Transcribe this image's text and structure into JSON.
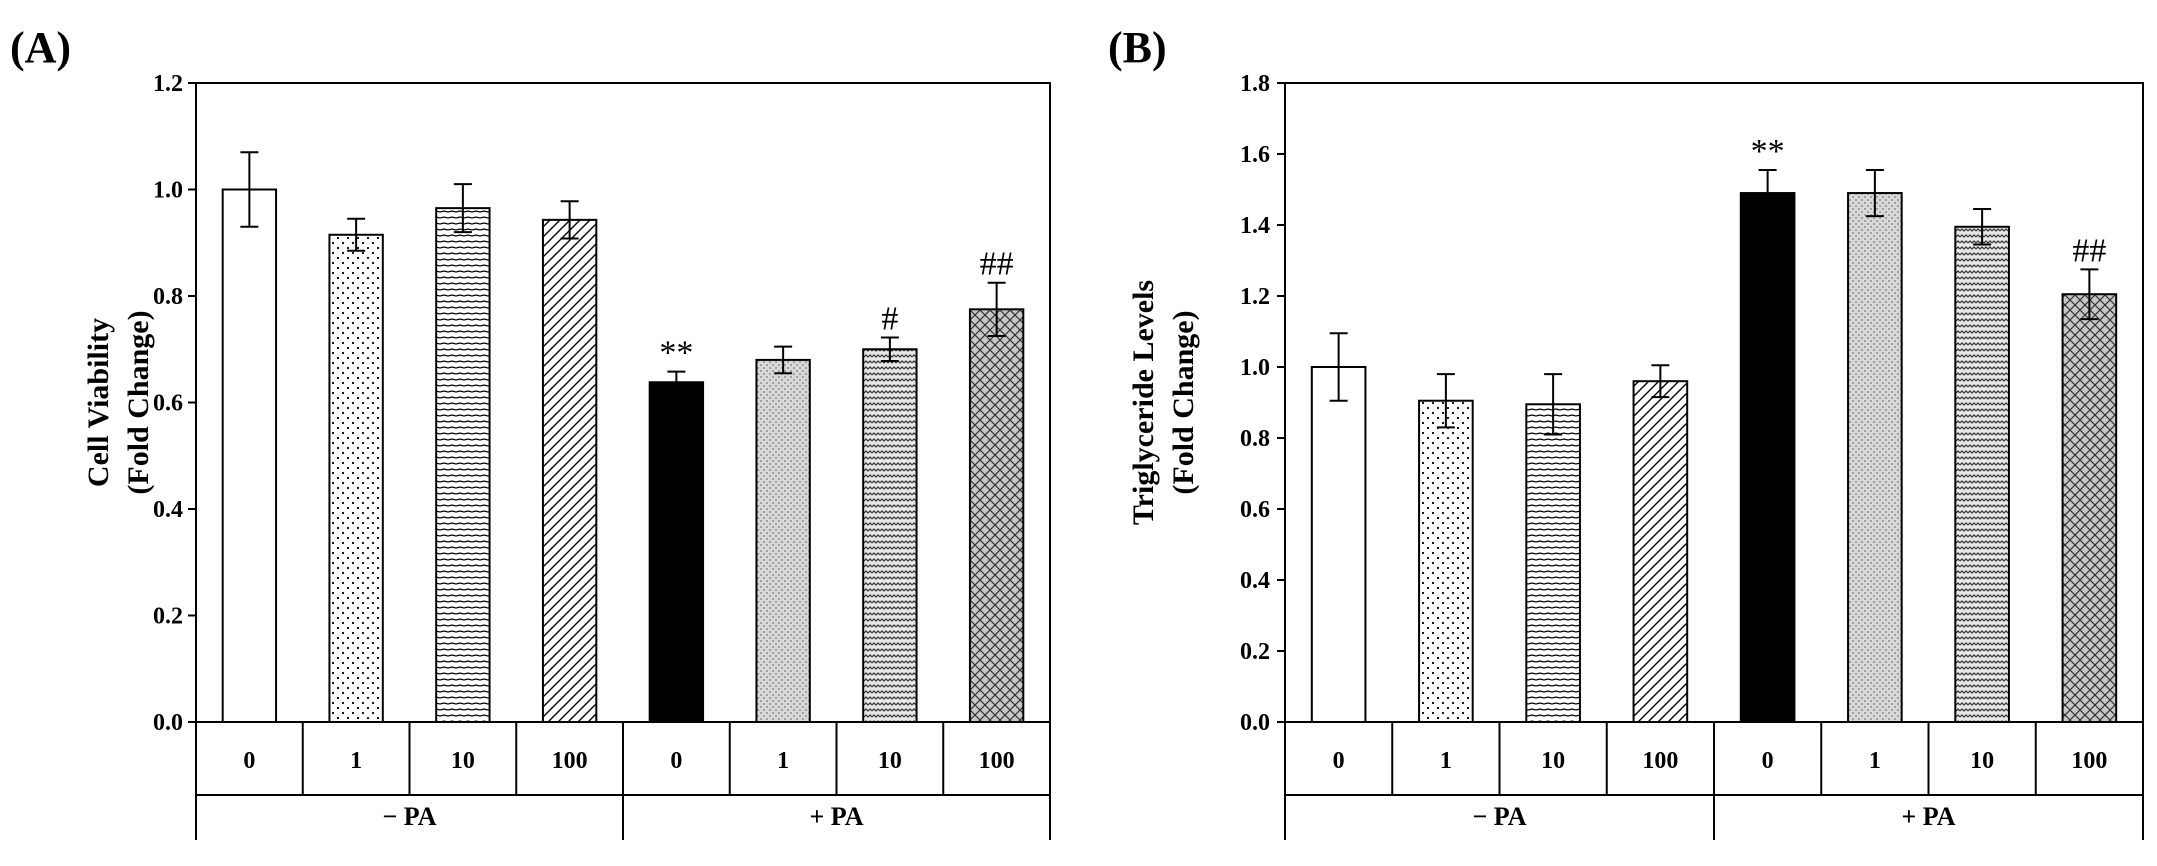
{
  "chart_data": [
    {
      "type": "bar",
      "panel_label": "(A)",
      "ylabel_lines": [
        "Cell Viability",
        "(Fold Change)"
      ],
      "ylim": [
        0,
        1.2
      ],
      "yticks": [
        "0.0",
        "0.2",
        "0.4",
        "0.6",
        "0.8",
        "1.0",
        "1.2"
      ],
      "categories": [
        "0",
        "1",
        "10",
        "100",
        "0",
        "1",
        "10",
        "100"
      ],
      "groups": [
        {
          "label": "− PA",
          "count": 4
        },
        {
          "label": "+ PA",
          "count": 4
        }
      ],
      "values": [
        1.0,
        0.915,
        0.965,
        0.943,
        0.638,
        0.68,
        0.7,
        0.775
      ],
      "errors": [
        0.07,
        0.03,
        0.045,
        0.035,
        0.02,
        0.025,
        0.022,
        0.05
      ],
      "annotations": [
        "",
        "",
        "",
        "",
        "**",
        "",
        "#",
        "##"
      ],
      "patterns": [
        "white",
        "dots",
        "hlines",
        "diag",
        "black",
        "lightdots",
        "wavy",
        "crosshatch"
      ],
      "legend": "none",
      "grid": false
    },
    {
      "type": "bar",
      "panel_label": "(B)",
      "ylabel_lines": [
        "Triglyceride Levels",
        "(Fold Change)"
      ],
      "ylim": [
        0,
        1.8
      ],
      "yticks": [
        "0.0",
        "0.2",
        "0.4",
        "0.6",
        "0.8",
        "1.0",
        "1.2",
        "1.4",
        "1.6",
        "1.8"
      ],
      "categories": [
        "0",
        "1",
        "10",
        "100",
        "0",
        "1",
        "10",
        "100"
      ],
      "groups": [
        {
          "label": "− PA",
          "count": 4
        },
        {
          "label": "+ PA",
          "count": 4
        }
      ],
      "values": [
        1.0,
        0.905,
        0.895,
        0.96,
        1.49,
        1.49,
        1.395,
        1.205
      ],
      "errors": [
        0.095,
        0.075,
        0.085,
        0.045,
        0.065,
        0.065,
        0.05,
        0.07
      ],
      "annotations": [
        "",
        "",
        "",
        "",
        "**",
        "",
        "",
        "##"
      ],
      "patterns": [
        "white",
        "dots",
        "hlines",
        "diag",
        "black",
        "lightdots",
        "wavy",
        "crosshatch"
      ],
      "legend": "none",
      "grid": false
    }
  ]
}
